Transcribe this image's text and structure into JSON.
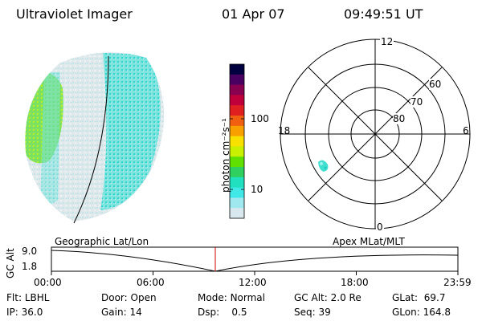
{
  "header": {
    "instrument": "Ultraviolet Imager",
    "date": "01 Apr 07",
    "time": "09:49:51 UT"
  },
  "colorbar": {
    "unit_label": "photon cm⁻²s⁻¹",
    "ticks": [
      "100",
      "10"
    ],
    "colors": [
      "#000040",
      "#4a0060",
      "#8a0050",
      "#c0003a",
      "#e02020",
      "#f06010",
      "#f8a000",
      "#f8e000",
      "#c8f000",
      "#60e000",
      "#30d060",
      "#20e0c0",
      "#40e8e8",
      "#a0e8f0",
      "#d8e8ee"
    ]
  },
  "polar": {
    "mlt_labels": {
      "top": "12",
      "left": "18",
      "right": "6",
      "bottom": "0"
    },
    "lat_labels": [
      "60",
      "70",
      "80"
    ]
  },
  "timeline": {
    "left_title": "Geographic Lat/Lon",
    "right_title": "Apex MLat/MLT",
    "y_axis_label": "GC Alt",
    "y_ticks": [
      "9.0",
      "1.8"
    ],
    "x_ticks": [
      "00:00",
      "06:00",
      "12:00",
      "18:00",
      "23:59"
    ],
    "marker_time": "09:49:51"
  },
  "info": {
    "row1": [
      {
        "label": "Flt:",
        "value": "LBHL"
      },
      {
        "label": "Door:",
        "value": "Open"
      },
      {
        "label": "Mode:",
        "value": "Normal"
      },
      {
        "label": "GC Alt:",
        "value": "2.0 Re"
      },
      {
        "label": "GLat:",
        "value": "69.7"
      }
    ],
    "row2": [
      {
        "label": "IP:",
        "value": "36.0"
      },
      {
        "label": "Gain:",
        "value": "14"
      },
      {
        "label": "Dsp:",
        "value": "0.5"
      },
      {
        "label": "Seq:",
        "value": "39"
      },
      {
        "label": "GLon:",
        "value": "164.8"
      }
    ]
  }
}
